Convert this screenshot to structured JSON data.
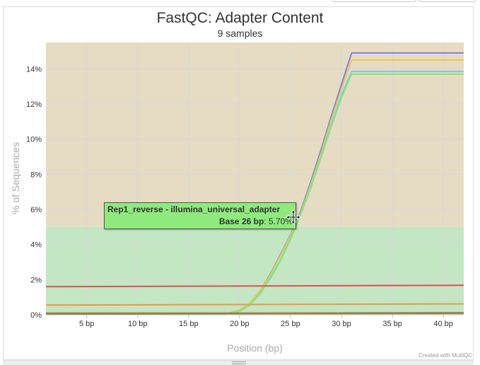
{
  "chart_data": {
    "type": "line",
    "title": "FastQC: Adapter Content",
    "subtitle": "9 samples",
    "xlabel": "Position (bp)",
    "ylabel": "% of Sequences",
    "xlim": [
      1,
      42
    ],
    "ylim": [
      0,
      15.5
    ],
    "x_ticks": [
      5,
      10,
      15,
      20,
      25,
      30,
      35,
      40
    ],
    "x_tick_labels": [
      "5 bp",
      "10 bp",
      "15 bp",
      "20 bp",
      "25 bp",
      "30 bp",
      "35 bp",
      "40 bp"
    ],
    "y_ticks": [
      0,
      2,
      4,
      6,
      8,
      10,
      12,
      14
    ],
    "y_tick_labels": [
      "0%",
      "2%",
      "4%",
      "6%",
      "8%",
      "10%",
      "12%",
      "14%"
    ],
    "grid": true,
    "bands": [
      {
        "from": 0,
        "to": 5,
        "color": "#c3e6c3"
      },
      {
        "from": 5,
        "to": 15.5,
        "color": "#e6dcc3"
      }
    ],
    "series": [
      {
        "color": "#8080e6",
        "x": [
          1,
          18,
          19,
          20,
          21,
          22,
          23,
          24,
          25,
          26,
          27,
          28,
          29,
          30,
          31,
          42
        ],
        "values": [
          0.05,
          0.05,
          0.1,
          0.25,
          0.65,
          1.35,
          2.3,
          3.4,
          4.55,
          5.9,
          7.6,
          9.4,
          11.3,
          13.1,
          14.9,
          14.9
        ]
      },
      {
        "color": "#e6c84d",
        "x": [
          1,
          18,
          19,
          20,
          21,
          22,
          23,
          24,
          25,
          26,
          27,
          28,
          29,
          30,
          31,
          42
        ],
        "values": [
          0.05,
          0.05,
          0.1,
          0.25,
          0.65,
          1.35,
          2.25,
          3.35,
          4.5,
          5.8,
          7.45,
          9.2,
          11.1,
          12.85,
          14.5,
          14.5
        ]
      },
      {
        "color": "#80c8e6",
        "x": [
          1,
          18,
          19,
          20,
          21,
          22,
          23,
          24,
          25,
          26,
          27,
          28,
          29,
          30,
          31,
          42
        ],
        "values": [
          0.05,
          0.05,
          0.1,
          0.2,
          0.55,
          1.2,
          2.1,
          3.1,
          4.35,
          5.7,
          7.3,
          9.0,
          10.8,
          12.5,
          13.85,
          13.85
        ]
      },
      {
        "color": "#80e680",
        "x": [
          1,
          18,
          19,
          20,
          21,
          22,
          23,
          24,
          25,
          26,
          27,
          28,
          29,
          30,
          31,
          42
        ],
        "values": [
          0.05,
          0.05,
          0.1,
          0.2,
          0.55,
          1.2,
          2.05,
          3.05,
          4.3,
          5.7,
          7.25,
          8.95,
          10.7,
          12.35,
          13.7,
          13.7
        ]
      },
      {
        "color": "#e64d4d",
        "x": [
          1,
          42
        ],
        "values": [
          1.6,
          1.68
        ]
      },
      {
        "color": "#e69a4d",
        "x": [
          1,
          42
        ],
        "values": [
          0.55,
          0.62
        ]
      },
      {
        "color": "#4d9a9a",
        "x": [
          1,
          42
        ],
        "values": [
          0.08,
          0.12
        ]
      },
      {
        "color": "#3d7a5a",
        "x": [
          1,
          42
        ],
        "values": [
          0.06,
          0.08
        ]
      },
      {
        "color": "#c08040",
        "x": [
          1,
          42
        ],
        "values": [
          0.1,
          0.1
        ]
      }
    ],
    "tooltip": {
      "series_name": "Rep1_reverse - illumina_universal_adapter",
      "position_label": "Base 26 bp",
      "value_label": "5.70%"
    },
    "credit": "Created with MultiQC"
  }
}
